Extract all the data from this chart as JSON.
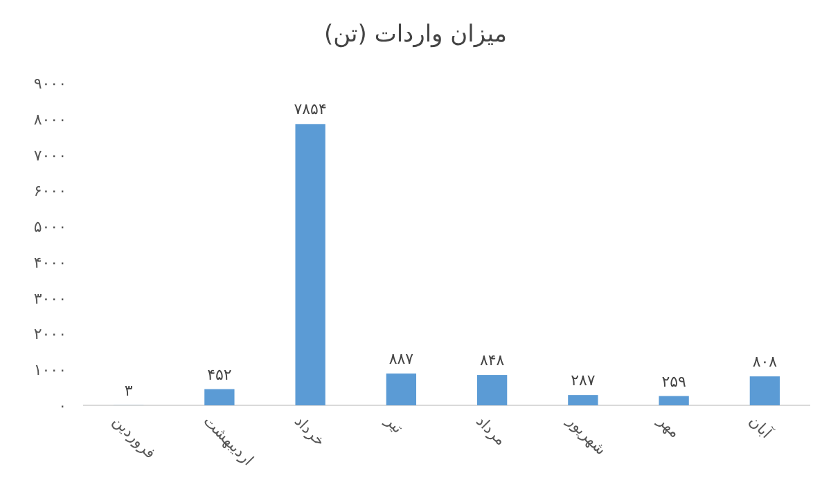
{
  "chart_data": {
    "type": "bar",
    "title": "میزان واردات (تن)",
    "categories": [
      "فروردین",
      "اردیبهشت",
      "خرداد",
      "تیر",
      "مرداد",
      "شهریور",
      "مهر",
      "آبان"
    ],
    "values": [
      3,
      452,
      7854,
      887,
      848,
      287,
      259,
      808
    ],
    "value_labels": [
      "۳",
      "۴۵۲",
      "۷۸۵۴",
      "۸۸۷",
      "۸۴۸",
      "۲۸۷",
      "۲۵۹",
      "۸۰۸"
    ],
    "color": "#5b9bd5",
    "ylim": [
      0,
      9000
    ],
    "yticks": [
      {
        "value": 0,
        "label": "۰"
      },
      {
        "value": 1000,
        "label": "۱۰۰۰"
      },
      {
        "value": 2000,
        "label": "۲۰۰۰"
      },
      {
        "value": 3000,
        "label": "۳۰۰۰"
      },
      {
        "value": 4000,
        "label": "۴۰۰۰"
      },
      {
        "value": 5000,
        "label": "۵۰۰۰"
      },
      {
        "value": 6000,
        "label": "۶۰۰۰"
      },
      {
        "value": 7000,
        "label": "۷۰۰۰"
      },
      {
        "value": 8000,
        "label": "۸۰۰۰"
      },
      {
        "value": 9000,
        "label": "۹۰۰۰"
      }
    ]
  }
}
